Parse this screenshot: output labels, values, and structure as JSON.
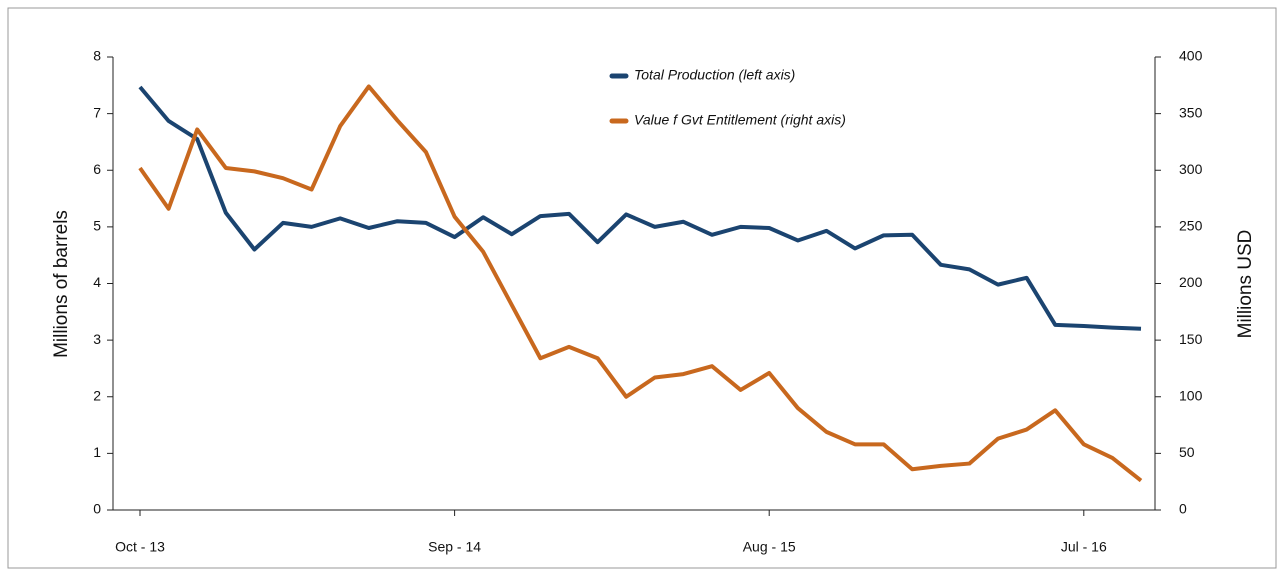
{
  "chart_data": {
    "type": "line",
    "y_label": "Millions of barrels",
    "y2_label": "Millions USD",
    "categories": [
      "Oct - 13",
      null,
      null,
      null,
      null,
      null,
      null,
      null,
      null,
      null,
      null,
      "Sep - 14",
      null,
      null,
      null,
      null,
      null,
      null,
      null,
      null,
      null,
      null,
      "Aug - 15",
      null,
      null,
      null,
      null,
      null,
      null,
      null,
      null,
      null,
      null,
      "Jul - 16",
      null,
      null
    ],
    "series": [
      {
        "name": "Total Production (left axis)",
        "color": "#1b4470",
        "axis": "y",
        "values": [
          7.47,
          6.87,
          6.55,
          5.25,
          4.6,
          5.07,
          5.0,
          5.15,
          4.98,
          5.1,
          5.07,
          4.82,
          5.17,
          4.87,
          5.19,
          5.23,
          4.73,
          5.22,
          5.0,
          5.09,
          4.86,
          5.0,
          4.98,
          4.76,
          4.93,
          4.62,
          4.85,
          4.86,
          4.33,
          4.25,
          3.98,
          4.1,
          3.27,
          3.25,
          3.22,
          3.2
        ]
      },
      {
        "name": "Value f Gvt Entitlement (right axis)",
        "color": "#c8681e",
        "axis": "y2",
        "values": [
          302,
          266,
          336,
          302,
          299,
          293,
          283,
          339,
          374,
          344,
          316,
          259,
          228,
          181,
          134,
          144,
          134,
          100,
          117,
          120,
          127,
          106,
          121,
          90,
          69,
          58,
          58,
          36,
          39,
          41,
          63,
          71,
          88,
          58,
          46,
          26
        ]
      }
    ],
    "ylim": [
      0,
      8
    ],
    "yticks": [
      0,
      1,
      2,
      3,
      4,
      5,
      6,
      7,
      8
    ],
    "y2lim": [
      0,
      400
    ],
    "y2ticks": [
      0,
      50,
      100,
      150,
      200,
      250,
      300,
      350,
      400
    ],
    "legend": "top"
  }
}
